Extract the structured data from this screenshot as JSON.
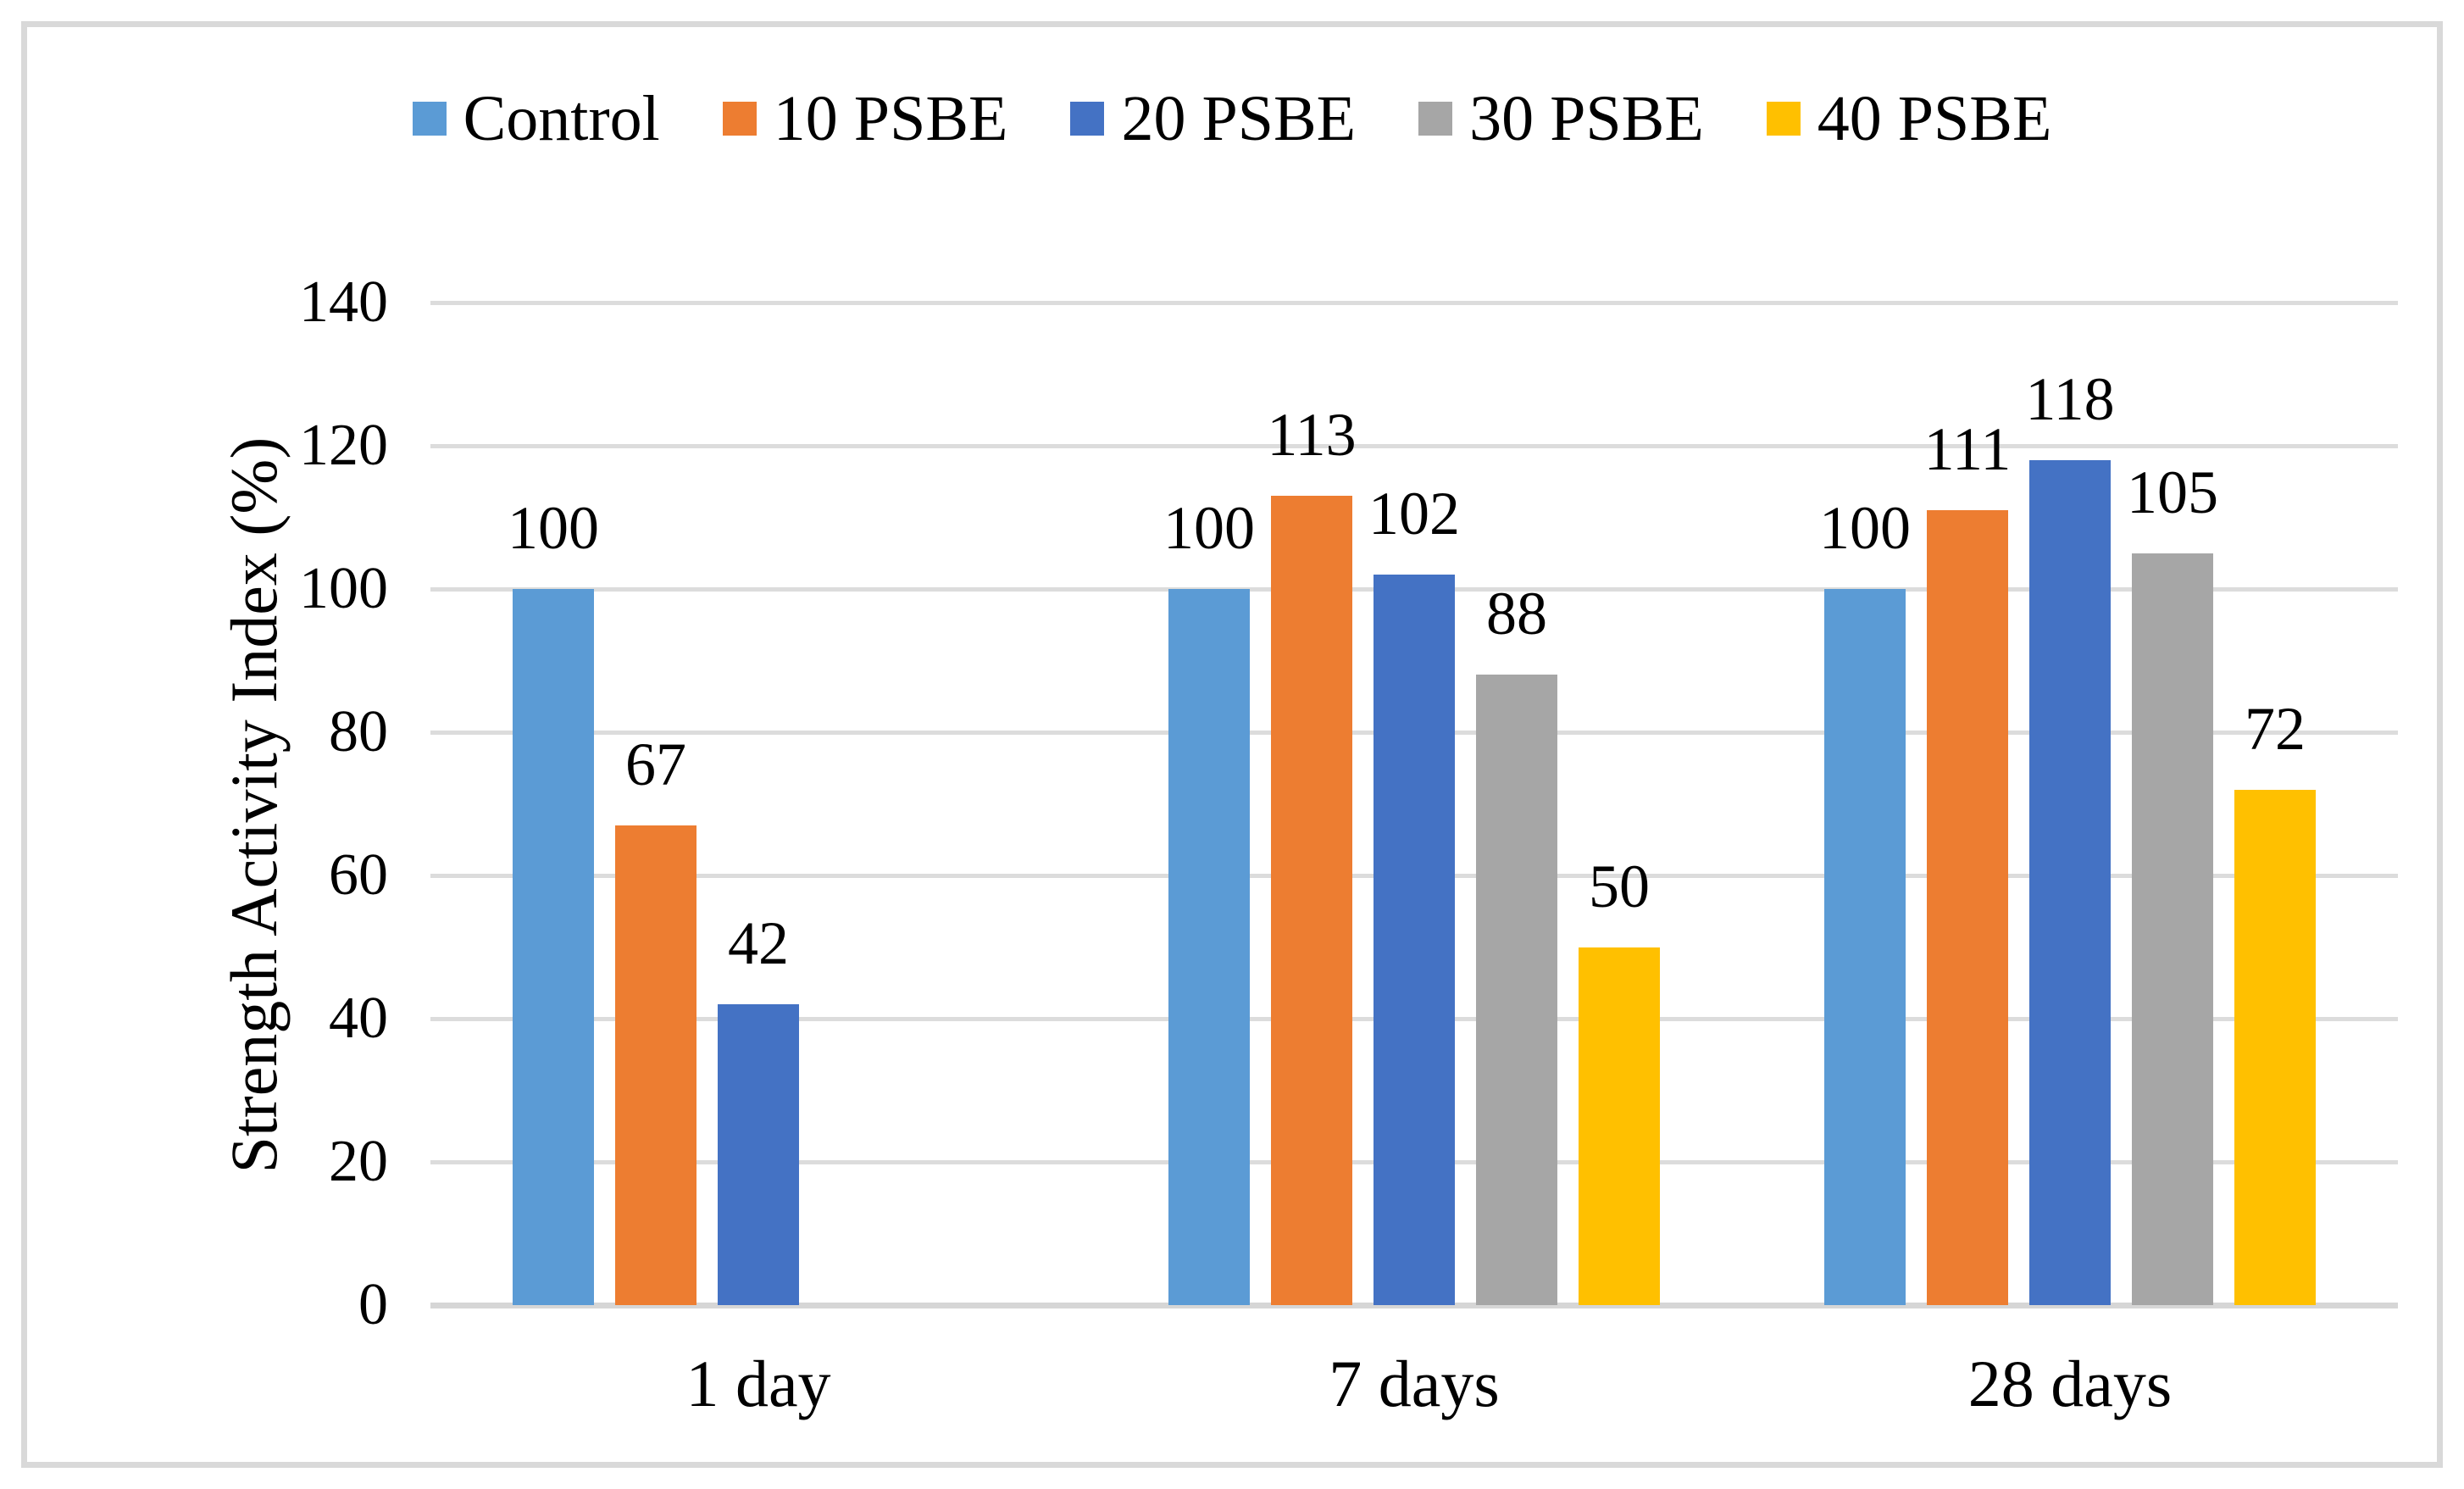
{
  "chart_data": {
    "type": "bar",
    "title": "",
    "ylabel": "Strength Activity Index (%)",
    "xlabel": "",
    "categories": [
      "1 day",
      "7 days",
      "28 days"
    ],
    "series": [
      {
        "name": "Control",
        "color": "#5B9BD5",
        "values": [
          100,
          100,
          100
        ]
      },
      {
        "name": "10 PSBE",
        "color": "#ED7D31",
        "values": [
          67,
          113,
          111
        ]
      },
      {
        "name": "20 PSBE",
        "color": "#4472C4",
        "values": [
          42,
          102,
          118
        ]
      },
      {
        "name": "30 PSBE",
        "color": "#A6A6A6",
        "values": [
          null,
          88,
          105
        ]
      },
      {
        "name": "40 PSBE",
        "color": "#FFC000",
        "values": [
          null,
          50,
          72
        ]
      }
    ],
    "data_labels": {
      "shown": true,
      "values_by_category": [
        [
          "100",
          "67",
          "42"
        ],
        [
          "100",
          "113",
          "102",
          "88",
          "50"
        ],
        [
          "100",
          "111",
          "118",
          "105",
          "72"
        ]
      ]
    },
    "ylim": [
      0,
      140
    ],
    "yticks": [
      0,
      20,
      40,
      60,
      80,
      100,
      120,
      140
    ],
    "grid": "horizontal",
    "legend_position": "top"
  },
  "colors": {
    "background": "#FFFFFF",
    "figure_border": "#D9D9D9",
    "gridline": "#DCDCDC",
    "axis_line": "#D6D6D6",
    "text": "#000000"
  }
}
